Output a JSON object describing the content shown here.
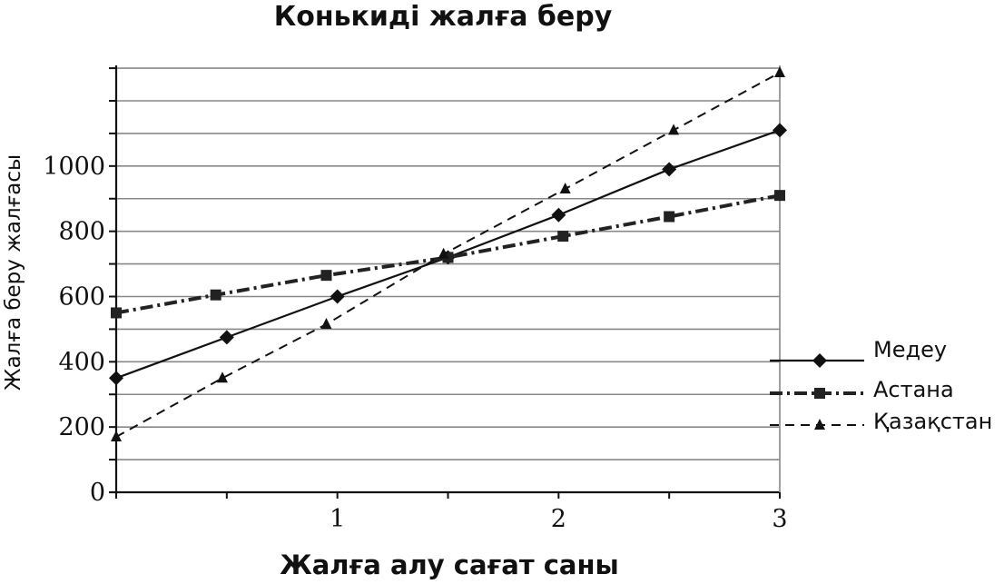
{
  "chart_data": {
    "type": "line",
    "title": "Конькиді жалға беру",
    "xlabel": "Жалға алу сағат саны",
    "ylabel": "Жалға беру жалғасы",
    "xlim": [
      0,
      3
    ],
    "ylim": [
      0,
      1100
    ],
    "x_ticks": [
      1,
      2,
      3
    ],
    "y_ticks": [
      0,
      200,
      400,
      600,
      800,
      1000
    ],
    "y_tick_labels": [
      "0",
      "200",
      "400",
      "600",
      "800",
      "1000"
    ],
    "x_tick_labels": [
      "1",
      "2",
      "3"
    ],
    "grid": "horizontal",
    "legend_position": "right",
    "series": [
      {
        "name": "Медеу",
        "style": "solid",
        "marker": "diamond",
        "color": "#111111",
        "x": [
          0,
          0.5,
          1,
          1.5,
          2,
          2.5,
          3
        ],
        "y": [
          350,
          475,
          600,
          720,
          850,
          990,
          1110
        ]
      },
      {
        "name": "Астана",
        "style": "dash-dot",
        "marker": "square",
        "color": "#222222",
        "x": [
          0,
          0.45,
          0.95,
          1.5,
          2.02,
          2.5,
          3
        ],
        "y": [
          550,
          605,
          665,
          720,
          785,
          845,
          910
        ]
      },
      {
        "name": "Қазақстан",
        "style": "dashed",
        "marker": "triangle",
        "color": "#111111",
        "x": [
          0,
          0.48,
          0.95,
          1.48,
          2.03,
          2.52,
          3
        ],
        "y": [
          170,
          350,
          515,
          730,
          930,
          1110,
          1290
        ]
      }
    ]
  }
}
